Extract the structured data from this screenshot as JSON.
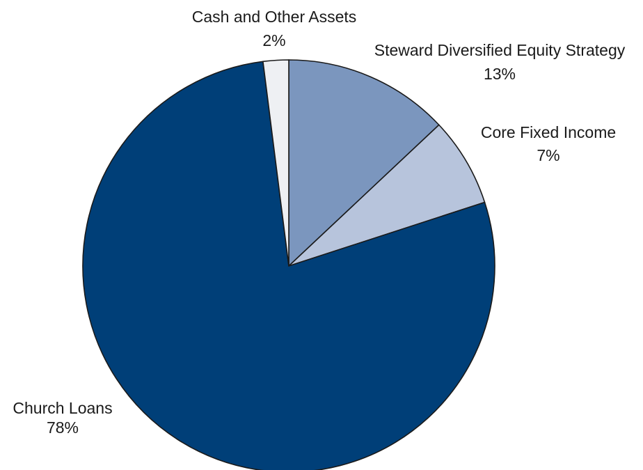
{
  "chart_data": {
    "type": "pie",
    "title": "",
    "slices": [
      {
        "label": "Steward Diversified Equity Strategy",
        "value": 13,
        "value_label": "13%",
        "color": "#7b96be"
      },
      {
        "label": "Core Fixed Income",
        "value": 7,
        "value_label": "7%",
        "color": "#b7c4dc"
      },
      {
        "label": "Church Loans",
        "value": 78,
        "value_label": "78%",
        "color": "#003f78"
      },
      {
        "label": "Cash and Other Assets",
        "value": 2,
        "value_label": "2%",
        "color": "#eef0f3"
      }
    ],
    "start_angle_deg": 0,
    "direction": "clockwise",
    "legend": "none"
  }
}
